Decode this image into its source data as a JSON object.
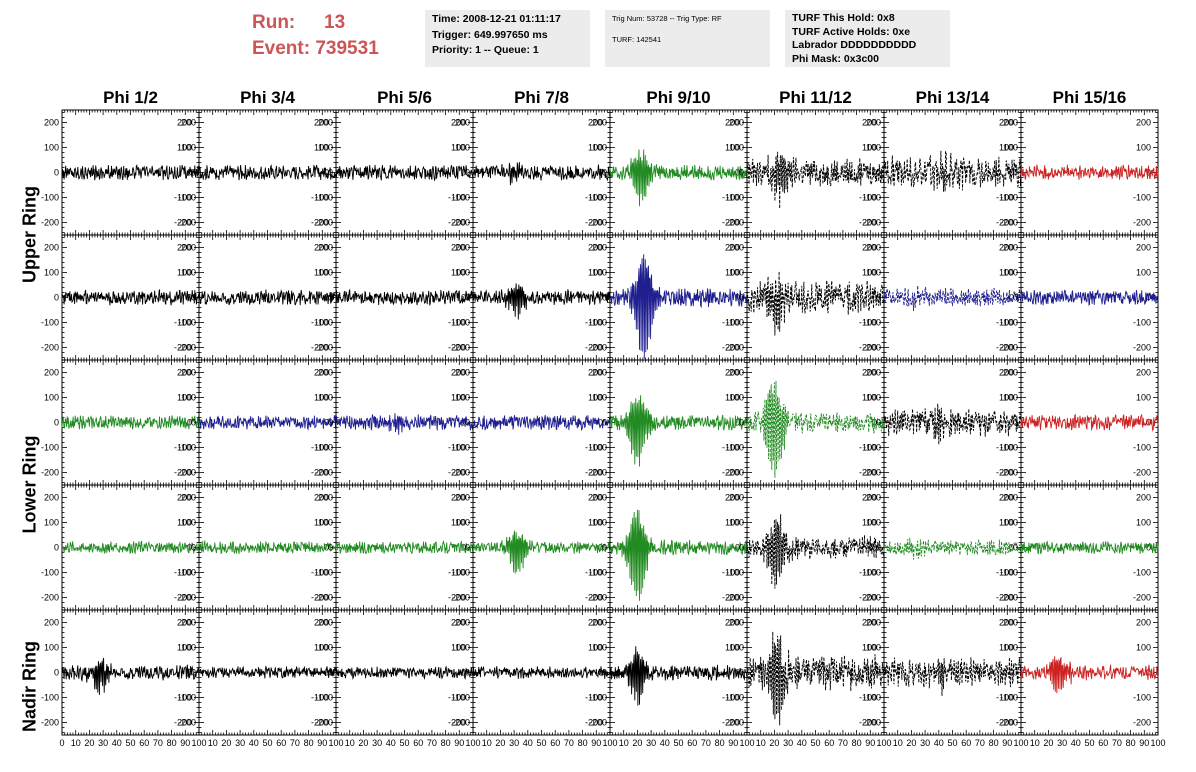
{
  "header": {
    "run_label": "Run:",
    "run_value": "13",
    "event_label": "Event:",
    "event_value": "739531",
    "time": "Time: 2008-12-21 01:11:17",
    "trigger": "Trigger: 649.997650 ms",
    "priority": "Priority: 1 -- Queue: 1",
    "trig_num": "Trig Num: 53728 -- Trig Type: RF",
    "turf": "TURF: 142541",
    "turf_hold": "TURF This Hold: 0x8",
    "turf_active": "TURF Active Holds: 0xe",
    "labrador": "Labrador DDDDDDDDDD",
    "phi_mask": "Phi Mask: 0x3c00"
  },
  "row_labels": [
    "Upper Ring",
    "Lower Ring",
    "Nadir Ring"
  ],
  "chart_data": {
    "type": "line",
    "columns": [
      "Phi 1/2",
      "Phi 3/4",
      "Phi 5/6",
      "Phi 7/8",
      "Phi 9/10",
      "Phi 11/12",
      "Phi 13/14",
      "Phi 15/16"
    ],
    "rows": 5,
    "xlim": [
      0,
      100
    ],
    "ylim": [
      -250,
      250
    ],
    "x_ticks": [
      0,
      10,
      20,
      30,
      40,
      50,
      60,
      70,
      80,
      90,
      100
    ],
    "y_ticks": [
      -200,
      -100,
      0,
      100,
      200
    ],
    "grid": false,
    "colors": {
      "black": "#000000",
      "green": "#228b22",
      "blue": "#1f1f8f",
      "red": "#cc2222"
    },
    "panels": [
      [
        {
          "color": "black",
          "amp": 25,
          "pulse": 0,
          "center": 0,
          "dashed": false
        },
        {
          "color": "black",
          "amp": 25,
          "pulse": 0,
          "center": 0,
          "dashed": false
        },
        {
          "color": "black",
          "amp": 25,
          "pulse": 0,
          "center": 0,
          "dashed": false
        },
        {
          "color": "black",
          "amp": 25,
          "pulse": 30,
          "center": 30,
          "dashed": false
        },
        {
          "color": "green",
          "amp": 25,
          "pulse": 110,
          "center": 22,
          "dashed": false
        },
        {
          "color": "black",
          "amp": 45,
          "pulse": 90,
          "center": 24,
          "dashed": true
        },
        {
          "color": "black",
          "amp": 55,
          "pulse": 50,
          "center": 45,
          "dashed": true
        },
        {
          "color": "red",
          "amp": 25,
          "pulse": 0,
          "center": 0,
          "dashed": false
        }
      ],
      [
        {
          "color": "black",
          "amp": 25,
          "pulse": 0,
          "center": 0,
          "dashed": false
        },
        {
          "color": "black",
          "amp": 25,
          "pulse": 0,
          "center": 0,
          "dashed": false
        },
        {
          "color": "black",
          "amp": 25,
          "pulse": 0,
          "center": 0,
          "dashed": false
        },
        {
          "color": "black",
          "amp": 25,
          "pulse": 60,
          "center": 32,
          "dashed": false
        },
        {
          "color": "blue",
          "amp": 30,
          "pulse": 230,
          "center": 25,
          "dashed": false
        },
        {
          "color": "black",
          "amp": 55,
          "pulse": 110,
          "center": 22,
          "dashed": true
        },
        {
          "color": "blue",
          "amp": 30,
          "pulse": 30,
          "center": 25,
          "dashed": true
        },
        {
          "color": "blue",
          "amp": 25,
          "pulse": 0,
          "center": 0,
          "dashed": false
        }
      ],
      [
        {
          "color": "green",
          "amp": 22,
          "pulse": 0,
          "center": 0,
          "dashed": false
        },
        {
          "color": "blue",
          "amp": 22,
          "pulse": 0,
          "center": 0,
          "dashed": false
        },
        {
          "color": "blue",
          "amp": 25,
          "pulse": 30,
          "center": 45,
          "dashed": false
        },
        {
          "color": "blue",
          "amp": 25,
          "pulse": 0,
          "center": 0,
          "dashed": false
        },
        {
          "color": "green",
          "amp": 25,
          "pulse": 160,
          "center": 20,
          "dashed": false
        },
        {
          "color": "green",
          "amp": 35,
          "pulse": 200,
          "center": 20,
          "dashed": true
        },
        {
          "color": "black",
          "amp": 45,
          "pulse": 50,
          "center": 40,
          "dashed": true
        },
        {
          "color": "red",
          "amp": 25,
          "pulse": 0,
          "center": 0,
          "dashed": false
        }
      ],
      [
        {
          "color": "green",
          "amp": 20,
          "pulse": 0,
          "center": 0,
          "dashed": false
        },
        {
          "color": "green",
          "amp": 20,
          "pulse": 0,
          "center": 0,
          "dashed": false
        },
        {
          "color": "green",
          "amp": 20,
          "pulse": 0,
          "center": 0,
          "dashed": false
        },
        {
          "color": "green",
          "amp": 20,
          "pulse": 90,
          "center": 32,
          "dashed": false
        },
        {
          "color": "green",
          "amp": 25,
          "pulse": 200,
          "center": 20,
          "dashed": false
        },
        {
          "color": "black",
          "amp": 40,
          "pulse": 150,
          "center": 22,
          "dashed": true
        },
        {
          "color": "green",
          "amp": 25,
          "pulse": 30,
          "center": 25,
          "dashed": true
        },
        {
          "color": "green",
          "amp": 20,
          "pulse": 0,
          "center": 0,
          "dashed": false
        }
      ],
      [
        {
          "color": "black",
          "amp": 25,
          "pulse": 65,
          "center": 28,
          "dashed": false
        },
        {
          "color": "black",
          "amp": 20,
          "pulse": 0,
          "center": 0,
          "dashed": false
        },
        {
          "color": "black",
          "amp": 20,
          "pulse": 0,
          "center": 0,
          "dashed": false
        },
        {
          "color": "black",
          "amp": 20,
          "pulse": 0,
          "center": 0,
          "dashed": false
        },
        {
          "color": "black",
          "amp": 25,
          "pulse": 110,
          "center": 20,
          "dashed": false
        },
        {
          "color": "black",
          "amp": 60,
          "pulse": 170,
          "center": 22,
          "dashed": true
        },
        {
          "color": "black",
          "amp": 50,
          "pulse": 40,
          "center": 40,
          "dashed": true
        },
        {
          "color": "red",
          "amp": 25,
          "pulse": 80,
          "center": 28,
          "dashed": false
        }
      ]
    ]
  }
}
